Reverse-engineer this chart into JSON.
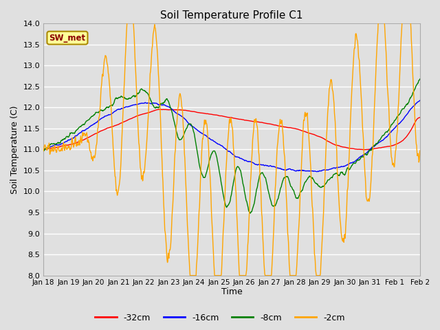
{
  "title": "Soil Temperature Profile C1",
  "xlabel": "Time",
  "ylabel": "Soil Temperature (C)",
  "ylim": [
    8.0,
    14.0
  ],
  "yticks": [
    8.0,
    8.5,
    9.0,
    9.5,
    10.0,
    10.5,
    11.0,
    11.5,
    12.0,
    12.5,
    13.0,
    13.5,
    14.0
  ],
  "plot_bg_color": "#e0e0e0",
  "legend_label": "SW_met",
  "legend_box_color": "#ffff99",
  "legend_box_border": "#aa8800",
  "lines": [
    {
      "label": "-32cm",
      "color": "red"
    },
    {
      "label": "-16cm",
      "color": "blue"
    },
    {
      "label": "-8cm",
      "color": "green"
    },
    {
      "label": "-2cm",
      "color": "orange"
    }
  ],
  "x_tick_labels": [
    "Jan 18",
    "Jan 19",
    "Jan 20",
    "Jan 21",
    "Jan 22",
    "Jan 23",
    "Jan 24",
    "Jan 25",
    "Jan 26",
    "Jan 27",
    "Jan 28",
    "Jan 29",
    "Jan 30",
    "Jan 31",
    "Feb 1",
    "Feb 2"
  ],
  "figsize": [
    6.4,
    4.8
  ],
  "dpi": 100
}
